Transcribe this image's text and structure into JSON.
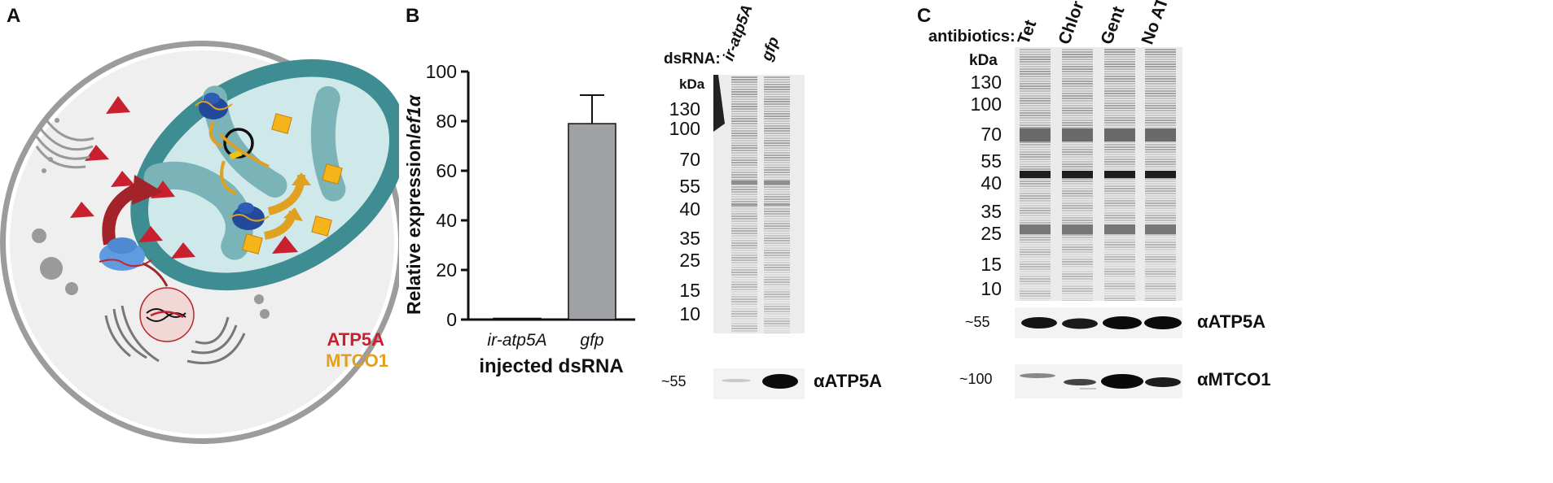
{
  "panels": {
    "a": "A",
    "b": "B",
    "c": "C"
  },
  "panel_a": {
    "legend": [
      {
        "label": "ATP5A",
        "color": "#c8202f"
      },
      {
        "label": "MTCO1",
        "color": "#e0a020"
      }
    ]
  },
  "chart_data": {
    "type": "bar",
    "categories": [
      "ir-atp5A",
      "gfp"
    ],
    "series": [
      {
        "values": [
          0.5,
          79
        ],
        "error": [
          0,
          11.5
        ]
      }
    ],
    "xlabel": "injected dsRNA",
    "ylabel_main": "Relative expression/",
    "ylabel_italic": "ef1α",
    "ylim": [
      0,
      100
    ],
    "yticks": [
      0,
      20,
      40,
      60,
      80,
      100
    ],
    "bar_colors": [
      "#a0a1a4",
      "#a0a1a4"
    ],
    "grid": false
  },
  "blot_b": {
    "dsrna_label": "dsRNA:",
    "lanes": [
      "ir-atp5A",
      "gfp"
    ],
    "kda_label": "kDa",
    "markers": [
      "130",
      "100",
      "70",
      "55",
      "40",
      "35",
      "25",
      "15",
      "10"
    ],
    "band_marker": "~55",
    "band_label": "αATP5A"
  },
  "blot_c": {
    "antibiotics_label": "antibiotics:",
    "lanes": [
      "Tet",
      "Chlor",
      "Gent",
      "No ATB"
    ],
    "kda_label": "kDa",
    "markers": [
      "130",
      "100",
      "70",
      "55",
      "40",
      "35",
      "25",
      "15",
      "10"
    ],
    "band1_marker": "~55",
    "band1_label": "αATP5A",
    "band2_marker": "~100",
    "band2_label": "αMTCO1"
  }
}
